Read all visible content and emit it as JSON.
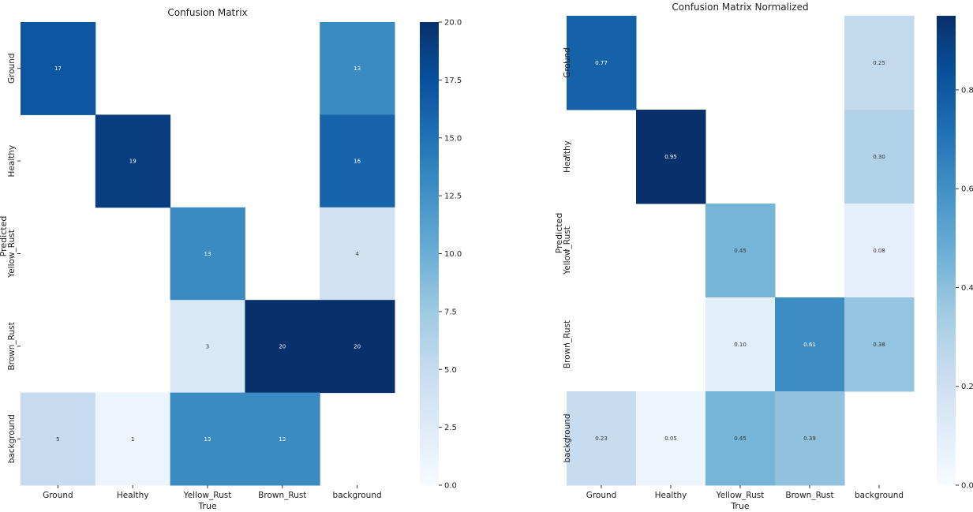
{
  "figure_title": "",
  "chart_data": [
    {
      "type": "heatmap",
      "title": "Confusion Matrix",
      "xlabel": "True",
      "ylabel": "Predicted",
      "x_categories": [
        "Ground",
        "Healthy",
        "Yellow_Rust",
        "Brown_Rust",
        "background"
      ],
      "y_categories": [
        "Ground",
        "Healthy",
        "Yellow_Rust",
        "Brown_Rust",
        "background"
      ],
      "y_tick_labels": [
        "Ground",
        "Healthy",
        "Yellow_Rust",
        "Brown_Rust",
        "background"
      ],
      "matrix": [
        [
          17,
          null,
          null,
          null,
          13
        ],
        [
          null,
          19,
          null,
          null,
          16
        ],
        [
          null,
          null,
          13,
          null,
          4
        ],
        [
          null,
          null,
          3,
          20,
          20
        ],
        [
          5,
          1,
          13,
          13,
          null
        ]
      ],
      "cell_labels": [
        [
          "17",
          "",
          "",
          "",
          "13"
        ],
        [
          "",
          "19",
          "",
          "",
          "16"
        ],
        [
          "",
          "",
          "13",
          "",
          "4"
        ],
        [
          "",
          "",
          "3",
          "20",
          "20"
        ],
        [
          "5",
          "1",
          "13",
          "13",
          ""
        ]
      ],
      "vmin": 0,
      "vmax": 20,
      "colormap": "Blues",
      "colorbar_ticks": [
        0.0,
        2.5,
        5.0,
        7.5,
        10.0,
        12.5,
        15.0,
        17.5,
        20.0
      ],
      "colorbar_tick_labels": [
        "0.0",
        "2.5",
        "5.0",
        "7.5",
        "10.0",
        "12.5",
        "15.0",
        "17.5",
        "20.0"
      ]
    },
    {
      "type": "heatmap",
      "title": "Confusion Matrix Normalized",
      "xlabel": "True",
      "ylabel": "Predicted",
      "x_categories": [
        "Ground",
        "Healthy",
        "Yellow_Rust",
        "Brown_Rust",
        "background"
      ],
      "y_categories": [
        "Ground",
        "Healthy",
        "Yellow_Rust",
        "Brown_Rust",
        "background"
      ],
      "y_tick_labels": [
        "Ground",
        "Healthy",
        "Yellow_Rust",
        "Brown_Rust",
        "background"
      ],
      "matrix": [
        [
          0.77,
          null,
          null,
          null,
          0.25
        ],
        [
          null,
          0.95,
          null,
          null,
          0.3
        ],
        [
          null,
          null,
          0.45,
          null,
          0.08
        ],
        [
          null,
          null,
          0.1,
          0.61,
          0.38
        ],
        [
          0.23,
          0.05,
          0.45,
          0.39,
          null
        ]
      ],
      "cell_labels": [
        [
          "0.77",
          "",
          "",
          "",
          "0.25"
        ],
        [
          "",
          "0.95",
          "",
          "",
          "0.30"
        ],
        [
          "",
          "",
          "0.45",
          "",
          "0.08"
        ],
        [
          "",
          "",
          "0.10",
          "0.61",
          "0.38"
        ],
        [
          "0.23",
          "0.05",
          "0.45",
          "0.39",
          ""
        ]
      ],
      "vmin": 0,
      "vmax": 0.95,
      "colormap": "Blues",
      "colorbar_ticks": [
        0.0,
        0.2,
        0.4,
        0.6,
        0.8
      ],
      "colorbar_tick_labels": [
        "0.0",
        "0.2",
        "0.4",
        "0.6",
        "0.8"
      ]
    }
  ]
}
